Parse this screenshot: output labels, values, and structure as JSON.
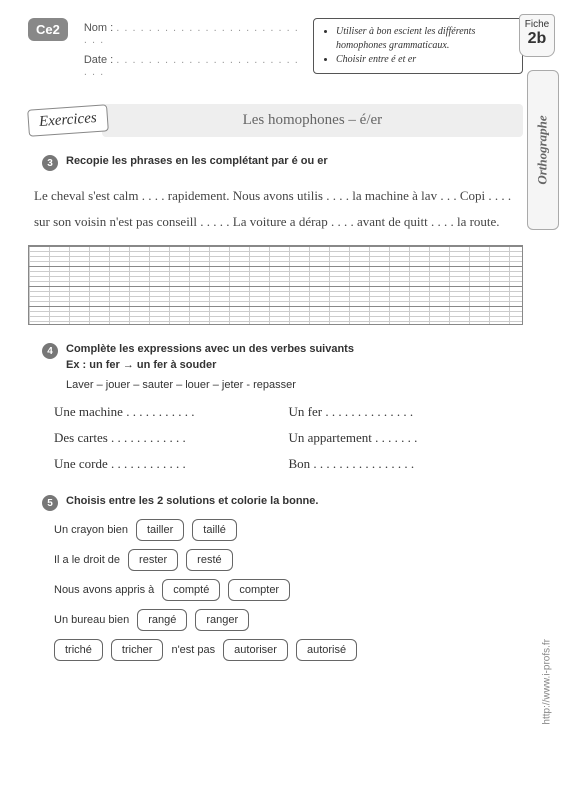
{
  "header": {
    "level_badge": "Ce2",
    "name_label": "Nom :",
    "date_label": "Date :",
    "dots": ". . . . . . . . . . . . . . . . . . . . . . . . . .",
    "objectives": [
      "Utiliser à bon escient les différents homophones grammaticaux.",
      "Choisir entre é et er"
    ],
    "fiche_label": "Fiche",
    "fiche_num": "2b",
    "side_label": "Orthographe",
    "url": "http://www.i-profs.fr"
  },
  "title": {
    "ex_label": "Exercices",
    "bar": "Les homophones – é/er"
  },
  "ex3": {
    "num": "3",
    "instr": "Recopie les phrases en les complétant par é ou er",
    "body": "Le cheval s'est calm . . . . rapidement. Nous avons utilis . . . . la machine à lav . . . Copi . . . . sur son voisin n'est pas conseill . . . . . La voiture a dérap . . . . avant de quitt . . . . la route."
  },
  "ex4": {
    "num": "4",
    "instr": "Complète les expressions avec un des verbes suivants",
    "example": "Ex :  un fer → un fer à souder",
    "verbs": "Laver – jouer – sauter – louer – jeter - repasser",
    "rows": [
      {
        "left": "Une machine . . . . . . . . . . .",
        "right": "Un fer . . . . . . . . . . . . . ."
      },
      {
        "left": "Des cartes . . . . . . . . . . . .",
        "right": "Un appartement . . . . . . ."
      },
      {
        "left": "Une corde . . . . . . . . . . . .",
        "right": "Bon . . . . . . . . . . . . . . . ."
      }
    ]
  },
  "ex5": {
    "num": "5",
    "instr": "Choisis entre les 2 solutions et colorie la bonne.",
    "rows": [
      {
        "pre": "Un crayon bien",
        "opts": [
          "tailler",
          "taillé"
        ],
        "post": ""
      },
      {
        "pre": "Il a le droit de",
        "opts": [
          "rester",
          "resté"
        ],
        "post": ""
      },
      {
        "pre": "Nous avons appris à",
        "opts": [
          "compté",
          "compter"
        ],
        "post": ""
      },
      {
        "pre": "Un bureau bien",
        "opts": [
          "rangé",
          "ranger"
        ],
        "post": ""
      },
      {
        "pre": "",
        "opts": [
          "triché",
          "tricher"
        ],
        "post": "n'est pas",
        "opts2": [
          "autoriser",
          "autorisé"
        ]
      }
    ]
  }
}
